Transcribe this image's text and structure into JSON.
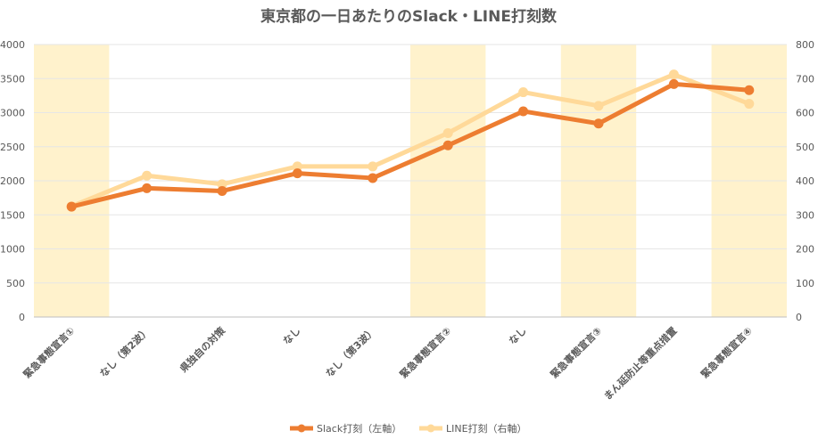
{
  "chart_data": {
    "type": "line",
    "title": "東京都の一日あたりのSlack・LINE打刻数",
    "categories": [
      "緊急事態宣言①",
      "なし（第2波）",
      "県独自の対策",
      "なし",
      "なし（第3波）",
      "緊急事態宣言②",
      "なし",
      "緊急事態宣言③",
      "まん延防止等重点措置",
      "緊急事態宣言④"
    ],
    "highlighted_categories": [
      0,
      5,
      7,
      9
    ],
    "highlight_color": "#FFF2CC",
    "series": [
      {
        "name": "Slack打刻（左軸）",
        "axis": "left",
        "color": "#ED7D31",
        "values": [
          1620,
          1890,
          1850,
          2110,
          2040,
          2520,
          3020,
          2840,
          3420,
          3330
        ]
      },
      {
        "name": "LINE打刻（右軸）",
        "axis": "right",
        "color": "#FFD999",
        "values": [
          325,
          415,
          390,
          442,
          442,
          540,
          660,
          620,
          712,
          626
        ]
      }
    ],
    "y_left": {
      "ylim": [
        0,
        4000
      ],
      "ticks": [
        0,
        500,
        1000,
        1500,
        2000,
        2500,
        3000,
        3500,
        4000
      ]
    },
    "y_right": {
      "ylim": [
        0,
        800
      ],
      "ticks": [
        0,
        100,
        200,
        300,
        400,
        500,
        600,
        700,
        800
      ]
    },
    "grid": true,
    "legend_position": "bottom"
  }
}
